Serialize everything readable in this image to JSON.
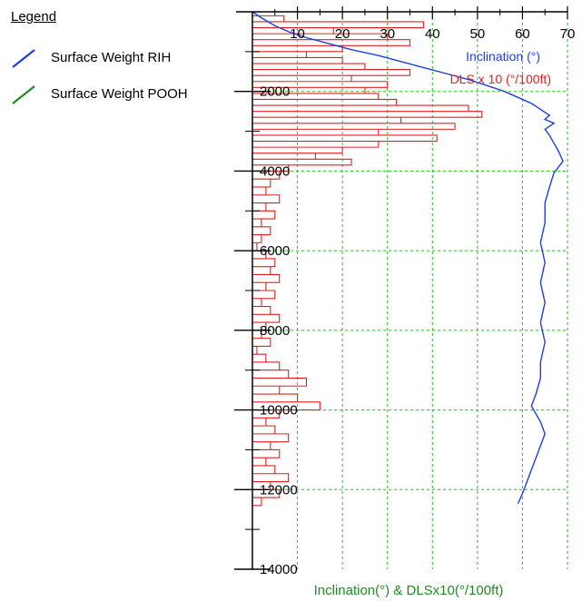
{
  "legend": {
    "title": "Legend",
    "items": [
      {
        "label": "Surface Weight RIH",
        "color": "#1f3fd9"
      },
      {
        "label": "Surface Weight POOH",
        "color": "#1f8a1f"
      }
    ]
  },
  "chart_data": {
    "type": "line",
    "title": "",
    "xlabel": "Inclination(°) & DLSx10(°/100ft)",
    "ylabel": "",
    "x_ticks": [
      10,
      20,
      30,
      40,
      50,
      60,
      70
    ],
    "y_ticks": [
      2000,
      4000,
      6000,
      8000,
      10000,
      12000,
      14000
    ],
    "xlim": [
      0,
      70
    ],
    "ylim": [
      0,
      14000
    ],
    "y_inverted": true,
    "grid": true,
    "annotations": [
      {
        "text": "Inclination (°)",
        "color": "#1f3fd9"
      },
      {
        "text": "DLS x 10 (°/100ft)",
        "color": "#e02020"
      }
    ],
    "series": [
      {
        "name": "Inclination (°)",
        "color": "#1f3fd9",
        "style": "line",
        "points": [
          [
            0,
            0
          ],
          [
            2,
            150
          ],
          [
            5,
            350
          ],
          [
            8,
            500
          ],
          [
            12,
            650
          ],
          [
            17,
            800
          ],
          [
            22,
            950
          ],
          [
            28,
            1100
          ],
          [
            33,
            1250
          ],
          [
            38,
            1400
          ],
          [
            43,
            1550
          ],
          [
            48,
            1700
          ],
          [
            52,
            1850
          ],
          [
            56,
            2000
          ],
          [
            59,
            2150
          ],
          [
            62,
            2300
          ],
          [
            64,
            2450
          ],
          [
            66,
            2600
          ],
          [
            65,
            2700
          ],
          [
            67,
            2800
          ],
          [
            65,
            2950
          ],
          [
            66,
            3100
          ],
          [
            67,
            3300
          ],
          [
            68,
            3500
          ],
          [
            69,
            3750
          ],
          [
            67,
            4050
          ],
          [
            66,
            4400
          ],
          [
            65,
            4800
          ],
          [
            65,
            5300
          ],
          [
            64,
            5800
          ],
          [
            65,
            6300
          ],
          [
            64,
            6800
          ],
          [
            65,
            7300
          ],
          [
            64,
            7800
          ],
          [
            65,
            8300
          ],
          [
            64,
            8800
          ],
          [
            64,
            9200
          ],
          [
            63,
            9600
          ],
          [
            62,
            9900
          ],
          [
            63,
            10100
          ],
          [
            64,
            10300
          ],
          [
            65,
            10600
          ],
          [
            64,
            10900
          ],
          [
            63,
            11200
          ],
          [
            62,
            11500
          ],
          [
            61,
            11800
          ],
          [
            60,
            12100
          ],
          [
            59,
            12350
          ]
        ]
      },
      {
        "name": "DLS x 10 (°/100ft)",
        "color": "#e02020",
        "style": "step",
        "intervals": [
          [
            0,
            0,
            100
          ],
          [
            7,
            100,
            250
          ],
          [
            38,
            250,
            400
          ],
          [
            18,
            400,
            550
          ],
          [
            30,
            550,
            700
          ],
          [
            35,
            700,
            850
          ],
          [
            20,
            850,
            1000
          ],
          [
            12,
            1000,
            1150
          ],
          [
            20,
            1150,
            1300
          ],
          [
            25,
            1300,
            1450
          ],
          [
            35,
            1450,
            1600
          ],
          [
            22,
            1600,
            1750
          ],
          [
            30,
            1750,
            1900
          ],
          [
            25,
            1900,
            2050
          ],
          [
            28,
            2050,
            2200
          ],
          [
            32,
            2200,
            2350
          ],
          [
            48,
            2350,
            2500
          ],
          [
            51,
            2500,
            2650
          ],
          [
            33,
            2650,
            2800
          ],
          [
            45,
            2800,
            2950
          ],
          [
            28,
            2950,
            3100
          ],
          [
            41,
            3100,
            3250
          ],
          [
            28,
            3250,
            3400
          ],
          [
            20,
            3400,
            3550
          ],
          [
            14,
            3550,
            3700
          ],
          [
            22,
            3700,
            3850
          ],
          [
            8,
            3850,
            4000
          ],
          [
            6,
            4000,
            4200
          ],
          [
            4,
            4200,
            4400
          ],
          [
            3,
            4400,
            4600
          ],
          [
            6,
            4600,
            4800
          ],
          [
            3,
            4800,
            5000
          ],
          [
            5,
            5000,
            5200
          ],
          [
            2,
            5200,
            5400
          ],
          [
            4,
            5400,
            5600
          ],
          [
            2,
            5600,
            5800
          ],
          [
            1,
            5800,
            6000
          ],
          [
            3,
            6000,
            6200
          ],
          [
            5,
            6200,
            6400
          ],
          [
            4,
            6400,
            6600
          ],
          [
            6,
            6600,
            6800
          ],
          [
            3,
            6800,
            7000
          ],
          [
            5,
            7000,
            7200
          ],
          [
            2,
            7200,
            7400
          ],
          [
            4,
            7400,
            7600
          ],
          [
            6,
            7600,
            7800
          ],
          [
            3,
            7800,
            8000
          ],
          [
            2,
            8000,
            8200
          ],
          [
            4,
            8200,
            8400
          ],
          [
            1,
            8400,
            8600
          ],
          [
            3,
            8600,
            8800
          ],
          [
            6,
            8800,
            9000
          ],
          [
            8,
            9000,
            9200
          ],
          [
            12,
            9200,
            9400
          ],
          [
            6,
            9400,
            9600
          ],
          [
            10,
            9600,
            9800
          ],
          [
            15,
            9800,
            10000
          ],
          [
            6,
            10000,
            10200
          ],
          [
            3,
            10200,
            10400
          ],
          [
            5,
            10400,
            10600
          ],
          [
            8,
            10600,
            10800
          ],
          [
            4,
            10800,
            11000
          ],
          [
            6,
            11000,
            11200
          ],
          [
            3,
            11200,
            11400
          ],
          [
            5,
            11400,
            11600
          ],
          [
            8,
            11600,
            11800
          ],
          [
            4,
            11800,
            12000
          ],
          [
            6,
            12000,
            12200
          ],
          [
            2,
            12200,
            12400
          ]
        ]
      }
    ]
  }
}
